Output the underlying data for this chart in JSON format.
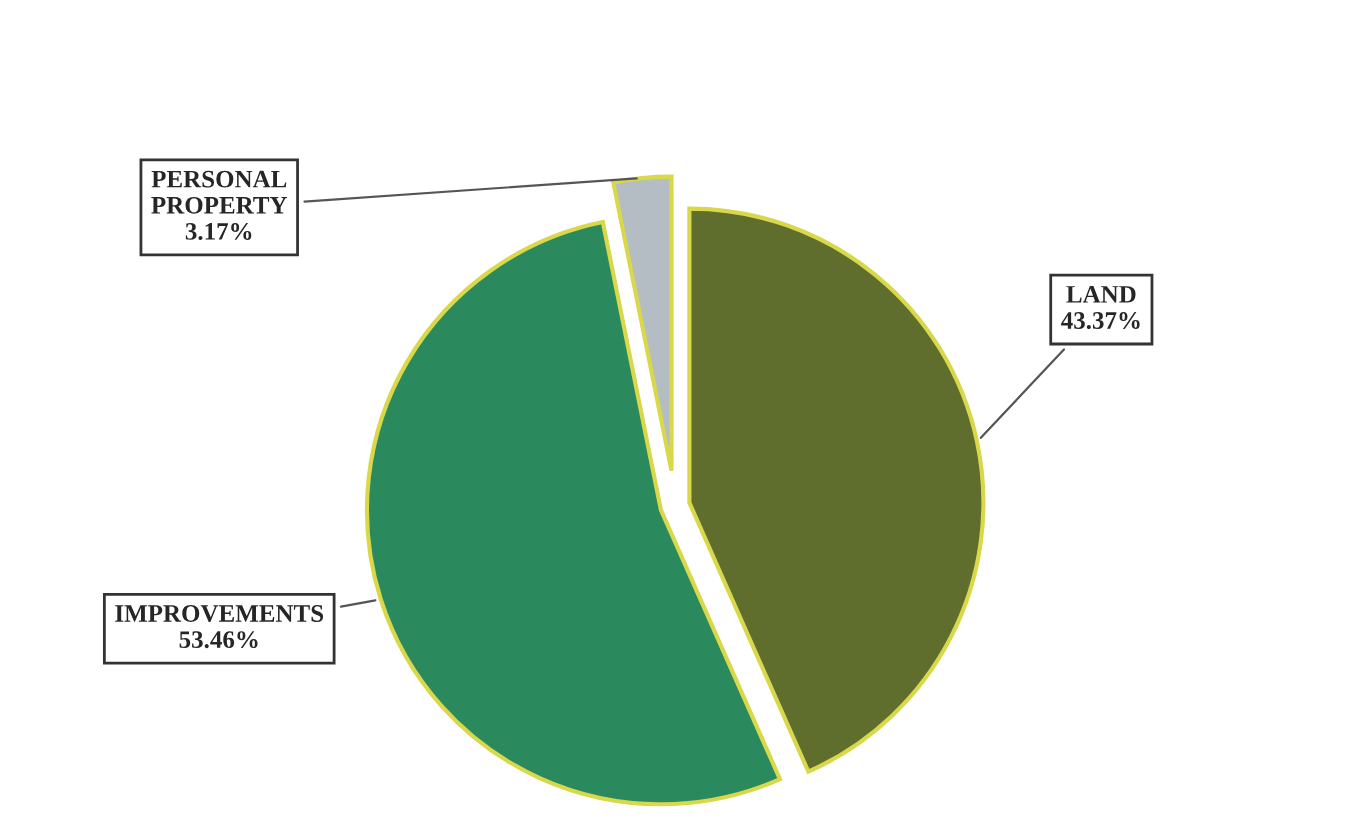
{
  "chart_data": {
    "type": "pie",
    "categories": [
      "LAND",
      "IMPROVEMENTS",
      "PERSONAL PROPERTY"
    ],
    "values": [
      43.37,
      53.46,
      3.17
    ],
    "colors": [
      "#5f6e2c",
      "#2a8a5e",
      "#b4bcc4"
    ],
    "value_labels": [
      "43.37%",
      "53.46%",
      "3.17%"
    ]
  }
}
